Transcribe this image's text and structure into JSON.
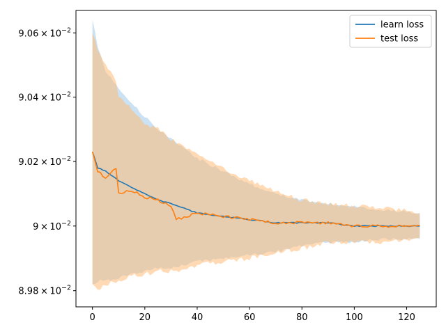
{
  "chart_data": {
    "type": "line",
    "title": "",
    "xlabel": "",
    "ylabel": "",
    "xlim": [
      -6.3,
      131.3
    ],
    "ylim": [
      0.08975,
      0.09067
    ],
    "yscale": "log",
    "grid": false,
    "legend_position": "top-right",
    "x_ticks": [
      0,
      20,
      40,
      60,
      80,
      100,
      120
    ],
    "x_tick_labels": [
      "0",
      "20",
      "40",
      "60",
      "80",
      "100",
      "120"
    ],
    "y_ticks": [
      0.0898,
      0.09,
      0.0902,
      0.0904,
      0.0906
    ],
    "y_tick_labels": [
      {
        "mantissa": "8.98",
        "exp": "−2"
      },
      {
        "mantissa": "9",
        "exp": "−2"
      },
      {
        "mantissa": "9.02",
        "exp": "−2"
      },
      {
        "mantissa": "9.04",
        "exp": "−2"
      },
      {
        "mantissa": "9.06",
        "exp": "−2"
      }
    ],
    "times_sign": "×",
    "base": "10",
    "series": [
      {
        "name": "learn loss",
        "color": "#1f77b4",
        "band_color": "#9ecae9",
        "anchors": [
          [
            0,
            0.09023,
            0.08982,
            0.09064
          ],
          [
            2,
            0.09018,
            0.08983,
            0.09056
          ],
          [
            5,
            0.09017,
            0.08983,
            0.09048
          ],
          [
            10,
            0.09014,
            0.08984,
            0.09043
          ],
          [
            15,
            0.09012,
            0.08985,
            0.09038
          ],
          [
            20,
            0.0901,
            0.08986,
            0.09034
          ],
          [
            25,
            0.09008,
            0.08987,
            0.0903
          ],
          [
            30,
            0.09007,
            0.08987,
            0.09027
          ],
          [
            40,
            0.09004,
            0.08989,
            0.09021
          ],
          [
            50,
            0.09003,
            0.0899,
            0.09017
          ],
          [
            60,
            0.09002,
            0.08991,
            0.09013
          ],
          [
            70,
            0.09001,
            0.08992,
            0.0901
          ],
          [
            80,
            0.09001,
            0.08994,
            0.09008
          ],
          [
            90,
            0.09001,
            0.08995,
            0.09007
          ],
          [
            100,
            0.09,
            0.08995,
            0.09006
          ],
          [
            110,
            0.09,
            0.08996,
            0.09005
          ],
          [
            125,
            0.09,
            0.08996,
            0.09004
          ]
        ],
        "noise": {
          "line": 1.5e-06,
          "band": 4.5e-06,
          "seed": 7
        }
      },
      {
        "name": "test loss",
        "color": "#ff7f0e",
        "band_color": "#ffbb78",
        "anchors": [
          [
            0,
            0.09023,
            0.08982,
            0.0906
          ],
          [
            2,
            0.09017,
            0.0898,
            0.09055
          ],
          [
            5,
            0.09015,
            0.08982,
            0.0905
          ],
          [
            9,
            0.09018,
            0.08983,
            0.09045
          ],
          [
            10,
            0.0901,
            0.08983,
            0.0904
          ],
          [
            15,
            0.09011,
            0.08985,
            0.09036
          ],
          [
            20,
            0.09009,
            0.08985,
            0.09032
          ],
          [
            25,
            0.09008,
            0.08986,
            0.0903
          ],
          [
            30,
            0.09006,
            0.08986,
            0.09027
          ],
          [
            32,
            0.09002,
            0.08986,
            0.09026
          ],
          [
            40,
            0.09004,
            0.08988,
            0.09022
          ],
          [
            50,
            0.09003,
            0.08989,
            0.09018
          ],
          [
            60,
            0.09002,
            0.0899,
            0.09014
          ],
          [
            70,
            0.09001,
            0.08992,
            0.09011
          ],
          [
            80,
            0.09001,
            0.08993,
            0.09008
          ],
          [
            90,
            0.09001,
            0.08995,
            0.09007
          ],
          [
            100,
            0.09,
            0.08995,
            0.09006
          ],
          [
            110,
            0.09,
            0.08995,
            0.09006
          ],
          [
            125,
            0.09,
            0.08996,
            0.09004
          ]
        ],
        "noise": {
          "line": 4e-06,
          "band": 7.5e-06,
          "seed": 23
        }
      }
    ],
    "x_count": 126
  }
}
